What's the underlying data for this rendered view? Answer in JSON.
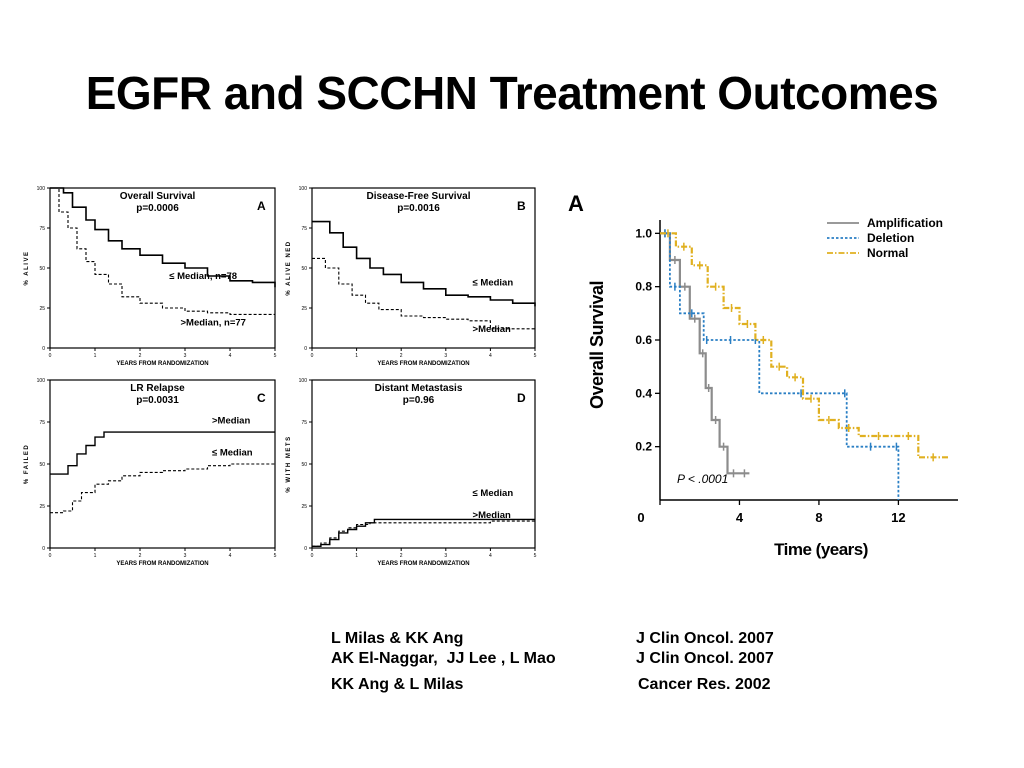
{
  "slide": {
    "title": "EGFR and SCCHN Treatment Outcomes"
  },
  "left_figure": {
    "panels": [
      {
        "letter": "A",
        "title": "Overall Survival",
        "pvalue": "p=0.0006",
        "ylabel": "% ALIVE",
        "xlabel": "YEARS FROM RANDOMIZATION",
        "ticks_y": [
          "100",
          "75",
          "50",
          "25",
          "0"
        ],
        "ticks_x": [
          "0",
          "1",
          "2",
          "3",
          "4",
          "5"
        ],
        "labels": [
          "≤ Median, n=78",
          ">Median, n=77"
        ]
      },
      {
        "letter": "B",
        "title": "Disease-Free Survival",
        "pvalue": "p=0.0016",
        "ylabel": "% ALIVE NED",
        "xlabel": "YEARS FROM RANDOMIZATION",
        "ticks_y": [
          "100",
          "75",
          "50",
          "25",
          "0"
        ],
        "ticks_x": [
          "0",
          "1",
          "2",
          "3",
          "4",
          "5"
        ],
        "labels": [
          "≤ Median",
          ">Median"
        ]
      },
      {
        "letter": "C",
        "title": "LR Relapse",
        "pvalue": "p=0.0031",
        "ylabel": "% FAILED",
        "xlabel": "YEARS FROM RANDOMIZATION",
        "ticks_y": [
          "100",
          "75",
          "50",
          "25",
          "0"
        ],
        "ticks_x": [
          "0",
          "1",
          "2",
          "3",
          "4",
          "5"
        ],
        "labels": [
          ">Median",
          "≤ Median"
        ]
      },
      {
        "letter": "D",
        "title": "Distant Metastasis",
        "pvalue": "p=0.96",
        "ylabel": "% WITH METS",
        "xlabel": "YEARS FROM RANDOMIZATION",
        "ticks_y": [
          "100",
          "75",
          "50",
          "25",
          "0"
        ],
        "ticks_x": [
          "0",
          "1",
          "2",
          "3",
          "4",
          "5"
        ],
        "labels": [
          "≤ Median",
          ">Median"
        ]
      }
    ]
  },
  "right_figure": {
    "letter": "A",
    "ylabel": "Overall Survival",
    "xlabel": "Time (years)",
    "ticks_y": [
      "1.0",
      "0.8",
      "0.6",
      "0.4",
      "0.2"
    ],
    "ticks_x": [
      "0",
      "4",
      "8",
      "12"
    ],
    "legend": [
      "Amplification",
      "Deletion",
      "Normal"
    ],
    "pvalue": "P < .0001",
    "colors": {
      "amplification": "#8c8c8c",
      "deletion": "#2a7fc4",
      "normal": "#e0b020"
    }
  },
  "chart_data": [
    {
      "type": "line",
      "title": "Overall Survival",
      "xlabel": "YEARS FROM RANDOMIZATION",
      "ylabel": "% ALIVE",
      "xlim": [
        0,
        5
      ],
      "ylim": [
        0,
        100
      ],
      "series": [
        {
          "name": "≤ Median, n=78",
          "x": [
            0,
            0.3,
            0.5,
            0.8,
            1.0,
            1.3,
            1.6,
            2.0,
            2.5,
            3.0,
            3.5,
            4.0,
            4.5,
            5.0
          ],
          "y": [
            100,
            97,
            88,
            80,
            74,
            67,
            62,
            58,
            53,
            50,
            45,
            42,
            41,
            38
          ]
        },
        {
          "name": ">Median, n=77",
          "x": [
            0,
            0.2,
            0.4,
            0.6,
            0.8,
            1.0,
            1.3,
            1.6,
            2.0,
            2.5,
            3.0,
            3.5,
            4.0,
            5.0
          ],
          "y": [
            100,
            85,
            75,
            62,
            54,
            46,
            40,
            32,
            28,
            25,
            23,
            22,
            21,
            21
          ]
        }
      ]
    },
    {
      "type": "line",
      "title": "Disease-Free Survival",
      "xlabel": "YEARS FROM RANDOMIZATION",
      "ylabel": "% ALIVE NED",
      "xlim": [
        0,
        5
      ],
      "ylim": [
        0,
        100
      ],
      "series": [
        {
          "name": "≤ Median",
          "x": [
            0,
            0.4,
            0.7,
            1.0,
            1.3,
            1.6,
            2.0,
            2.5,
            3.0,
            3.5,
            4.0,
            4.5,
            5.0
          ],
          "y": [
            79,
            72,
            63,
            56,
            50,
            46,
            41,
            37,
            33,
            32,
            30,
            28,
            26
          ]
        },
        {
          "name": ">Median",
          "x": [
            0,
            0.3,
            0.6,
            0.9,
            1.2,
            1.5,
            2.0,
            2.5,
            3.0,
            3.5,
            4.0,
            5.0
          ],
          "y": [
            56,
            50,
            40,
            33,
            28,
            24,
            20,
            19,
            18,
            17,
            12,
            12
          ]
        }
      ]
    },
    {
      "type": "line",
      "title": "LR Relapse",
      "xlabel": "YEARS FROM RANDOMIZATION",
      "ylabel": "% FAILED",
      "xlim": [
        0,
        5
      ],
      "ylim": [
        0,
        100
      ],
      "series": [
        {
          "name": ">Median",
          "x": [
            0,
            0.2,
            0.4,
            0.6,
            0.8,
            1.0,
            1.2,
            1.4,
            2.0,
            3.0,
            4.0,
            5.0
          ],
          "y": [
            44,
            44,
            49,
            56,
            61,
            66,
            69,
            69,
            69,
            69,
            69,
            69
          ]
        },
        {
          "name": "≤ Median",
          "x": [
            0,
            0.3,
            0.5,
            0.7,
            1.0,
            1.3,
            1.6,
            2.0,
            2.5,
            3.0,
            3.5,
            4.0,
            5.0
          ],
          "y": [
            21,
            22,
            28,
            33,
            38,
            40,
            43,
            45,
            46,
            47,
            49,
            50,
            50
          ]
        }
      ]
    },
    {
      "type": "line",
      "title": "Distant Metastasis",
      "xlabel": "YEARS FROM RANDOMIZATION",
      "ylabel": "% WITH METS",
      "xlim": [
        0,
        5
      ],
      "ylim": [
        0,
        100
      ],
      "series": [
        {
          "name": "≤ Median",
          "x": [
            0,
            0.2,
            0.4,
            0.6,
            0.8,
            1.0,
            1.2,
            1.4,
            2.0,
            3.0,
            4.0,
            5.0
          ],
          "y": [
            1,
            2,
            5,
            9,
            11,
            13,
            15,
            17,
            17,
            17,
            17,
            17
          ]
        },
        {
          "name": ">Median",
          "x": [
            0,
            0.2,
            0.4,
            0.6,
            0.8,
            1.0,
            1.3,
            1.6,
            2.0,
            3.0,
            4.0,
            5.0
          ],
          "y": [
            1,
            3,
            6,
            10,
            12,
            14,
            15,
            15,
            15,
            15,
            16,
            16
          ]
        }
      ]
    },
    {
      "type": "line",
      "title": "",
      "xlabel": "Time (years)",
      "ylabel": "Overall Survival",
      "xlim": [
        0,
        15
      ],
      "ylim": [
        0,
        1.05
      ],
      "series": [
        {
          "name": "Amplification",
          "x": [
            0,
            0.5,
            1.0,
            1.5,
            2.0,
            2.3,
            2.6,
            3.0,
            3.4,
            4.0,
            4.5
          ],
          "y": [
            1.0,
            0.9,
            0.8,
            0.68,
            0.55,
            0.42,
            0.3,
            0.2,
            0.1,
            0.1,
            0.1
          ]
        },
        {
          "name": "Deletion",
          "x": [
            0,
            0.5,
            1.0,
            2.2,
            2.5,
            4.6,
            5.0,
            9.2,
            9.4,
            11.8,
            12.0
          ],
          "y": [
            1.0,
            0.8,
            0.7,
            0.6,
            0.6,
            0.6,
            0.4,
            0.4,
            0.2,
            0.2,
            0.0
          ]
        },
        {
          "name": "Normal",
          "x": [
            0,
            0.8,
            1.6,
            2.4,
            3.2,
            4.0,
            4.8,
            5.6,
            6.4,
            7.2,
            8.0,
            9.0,
            10.0,
            12.0,
            13.0,
            14.5
          ],
          "y": [
            1.0,
            0.95,
            0.88,
            0.8,
            0.72,
            0.66,
            0.6,
            0.5,
            0.46,
            0.38,
            0.3,
            0.27,
            0.24,
            0.24,
            0.16,
            0.16
          ]
        }
      ]
    }
  ],
  "references": [
    {
      "authors": "L Milas & KK Ang",
      "journal": "J Clin Oncol. 2007"
    },
    {
      "authors": "AK El-Naggar,  JJ Lee , L Mao",
      "journal": "J Clin Oncol. 2007"
    },
    {
      "authors": "KK Ang & L Milas",
      "journal": "Cancer Res. 2002"
    }
  ]
}
